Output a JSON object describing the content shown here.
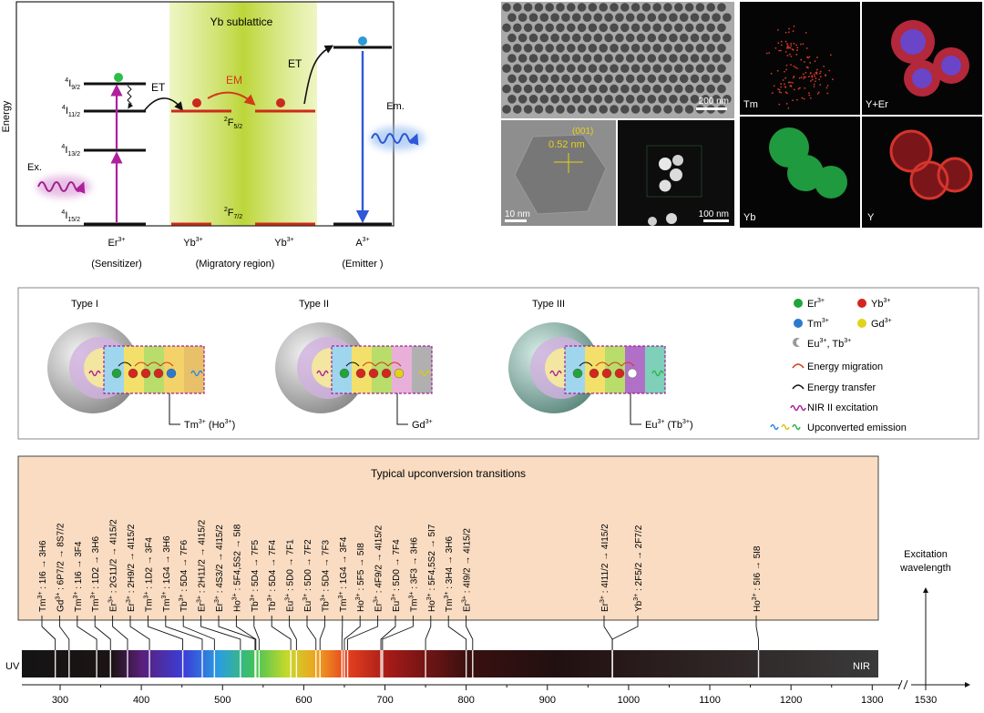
{
  "panel_a": {
    "axis_label": "Energy",
    "sublattice_label": "Yb sublattice",
    "levels": {
      "er_4i92": {
        "base": "4",
        "term": "I",
        "sub": "9/2"
      },
      "er_4i112": {
        "base": "4",
        "term": "I",
        "sub": "11/2"
      },
      "er_4i132": {
        "base": "4",
        "term": "I",
        "sub": "13/2"
      },
      "er_4i152": {
        "base": "4",
        "term": "I",
        "sub": "15/2"
      },
      "yb_2f52": {
        "base": "2",
        "term": "F",
        "sub": "5/2"
      },
      "yb_2f72": {
        "base": "2",
        "term": "F",
        "sub": "7/2"
      }
    },
    "arrows": {
      "et_left": "ET",
      "em": "EM",
      "et_right": "ET",
      "excitation": "Ex.",
      "emission": "Em."
    },
    "ions": [
      {
        "ion": "Er",
        "charge": "3+",
        "role": "(Sensitizer)"
      },
      {
        "ion": "Yb",
        "charge": "3+",
        "role": "(Migratory region)"
      },
      {
        "ion": "Yb",
        "charge": "3+",
        "role": ""
      },
      {
        "ion": "A",
        "charge": "3+",
        "role": "(Emitter )"
      }
    ],
    "colors": {
      "excitation": "#b0209c",
      "emission": "#2f58d8",
      "yb_levels": "#cc2b1a",
      "sublattice": "#c8e14a"
    }
  },
  "panel_b": {
    "scale_top": "200 nm",
    "lattice_label": "(001)",
    "lattice_spacing": "0.52 nm",
    "scale_hr": "10 nm",
    "scale_stem": "100 nm",
    "maps": [
      {
        "label": "Tm",
        "color": "#d43a2a"
      },
      {
        "label": "Y+Er",
        "color": "#c2307a"
      },
      {
        "label": "Yb",
        "color": "#2ab54a"
      },
      {
        "label": "Y",
        "color": "#d8302a"
      }
    ]
  },
  "panel_c": {
    "types": [
      {
        "title": "Type I",
        "dopant": {
          "ion": "Tm",
          "charge": "3+",
          "extra_ion": "Ho",
          "extra_charge": "3+"
        }
      },
      {
        "title": "Type II",
        "dopant": {
          "ion": "Gd",
          "charge": "3+",
          "extra_ion": "",
          "extra_charge": ""
        }
      },
      {
        "title": "Type III",
        "dopant": {
          "ion": "Eu",
          "charge": "3+",
          "extra_ion": "Tb",
          "extra_charge": "3+"
        }
      }
    ],
    "legend": {
      "er": {
        "ion": "Er",
        "charge": "3+",
        "color": "#22a43a"
      },
      "yb": {
        "ion": "Yb",
        "charge": "3+",
        "color": "#d4261e"
      },
      "tm": {
        "ion": "Tm",
        "charge": "3+",
        "color": "#2a7bd0"
      },
      "gd": {
        "ion": "Gd",
        "charge": "3+",
        "color": "#e2d21a"
      },
      "eu_tb": {
        "ion1": "Eu",
        "charge1": "3+",
        "ion2": "Tb",
        "charge2": "3+"
      },
      "migration": "Energy migration",
      "transfer": "Energy transfer",
      "nir": "NIR II excitation",
      "upconv": "Upconverted emission"
    }
  },
  "panel_d": {
    "box_title": "Typical upconversion transitions",
    "transitions": [
      {
        "ion": "Tm",
        "charge": "3+",
        "from": "1I6",
        "to": "3H6",
        "pos": 294
      },
      {
        "ion": "Gd",
        "charge": "3+",
        "from": "6P7/2",
        "to": "8S7/2",
        "pos": 311
      },
      {
        "ion": "Tm",
        "charge": "3+",
        "from": "1I6",
        "to": "3F4",
        "pos": 345
      },
      {
        "ion": "Tm",
        "charge": "3+",
        "from": "1D2",
        "to": "3H6",
        "pos": 362
      },
      {
        "ion": "Er",
        "charge": "3+",
        "from": "2G11/2",
        "to": "4I15/2",
        "pos": 383
      },
      {
        "ion": "Er",
        "charge": "3+",
        "from": "2H9/2",
        "to": "4I15/2",
        "pos": 410
      },
      {
        "ion": "Tm",
        "charge": "3+",
        "from": "1D2",
        "to": "3F4",
        "pos": 451
      },
      {
        "ion": "Tm",
        "charge": "3+",
        "from": "1G4",
        "to": "3H6",
        "pos": 475
      },
      {
        "ion": "Tb",
        "charge": "3+",
        "from": "5D4",
        "to": "7F6",
        "pos": 490
      },
      {
        "ion": "Er",
        "charge": "3+",
        "from": "2H11/2",
        "to": "4I15/2",
        "pos": 522
      },
      {
        "ion": "Er",
        "charge": "3+",
        "from": "4S3/2",
        "to": "4I15/2",
        "pos": 540
      },
      {
        "ion": "Ho",
        "charge": "3+",
        "from": "5F4,5S2",
        "to": "5I8",
        "pos": 541
      },
      {
        "ion": "Tb",
        "charge": "3+",
        "from": "5D4",
        "to": "7F5",
        "pos": 545
      },
      {
        "ion": "Tb",
        "charge": "3+",
        "from": "5D4",
        "to": "7F4",
        "pos": 584
      },
      {
        "ion": "Eu",
        "charge": "3+",
        "from": "5D0",
        "to": "7F1",
        "pos": 591
      },
      {
        "ion": "Eu",
        "charge": "3+",
        "from": "5D0",
        "to": "7F2",
        "pos": 615
      },
      {
        "ion": "Tb",
        "charge": "3+",
        "from": "5D4",
        "to": "7F3",
        "pos": 620
      },
      {
        "ion": "Tm",
        "charge": "3+",
        "from": "1G4",
        "to": "3F4",
        "pos": 647
      },
      {
        "ion": "Ho",
        "charge": "3+",
        "from": "5F5",
        "to": "5I8",
        "pos": 650
      },
      {
        "ion": "Er",
        "charge": "3+",
        "from": "4F9/2",
        "to": "4I15/2",
        "pos": 654
      },
      {
        "ion": "Eu",
        "charge": "3+",
        "from": "5D0",
        "to": "7F4",
        "pos": 695
      },
      {
        "ion": "Tm",
        "charge": "3+",
        "from": "3F3",
        "to": "3H6",
        "pos": 697
      },
      {
        "ion": "Ho",
        "charge": "3+",
        "from": "5F4,5S2",
        "to": "5I7",
        "pos": 750
      },
      {
        "ion": "Tm",
        "charge": "3+",
        "from": "3H4",
        "to": "3H6",
        "pos": 800
      },
      {
        "ion": "Er",
        "charge": "3+",
        "from": "4I9/2",
        "to": "4I15/2",
        "pos": 808
      },
      {
        "ion": "Er",
        "charge": "3+",
        "from": "4I11/2",
        "to": "4I15/2",
        "pos": 980
      },
      {
        "ion": "Yb",
        "charge": "3+",
        "from": "2F5/2",
        "to": "2F7/2",
        "pos": 980
      },
      {
        "ion": "Ho",
        "charge": "3+",
        "from": "5I6",
        "to": "5I8",
        "pos": 1160
      }
    ],
    "uv_label": "UV",
    "nir_label": "NIR",
    "axis_ticks": [
      300,
      400,
      500,
      600,
      700,
      800,
      900,
      1000,
      1100,
      1200,
      1300
    ],
    "far_tick": "1530",
    "excitation_label": [
      "Excitation",
      "wavelength"
    ]
  }
}
